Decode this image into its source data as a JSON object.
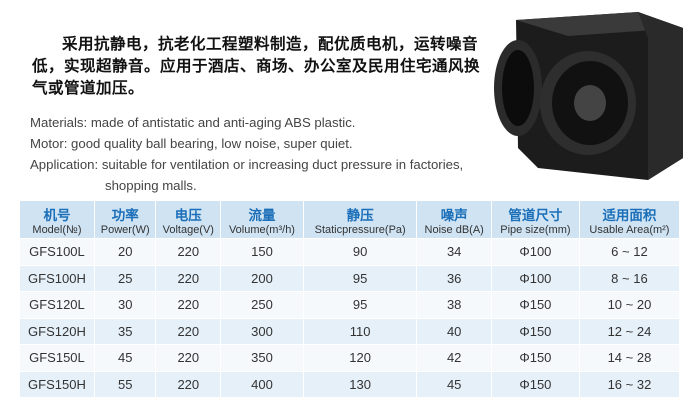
{
  "description_zh": "采用抗静电，抗老化工程塑料制造，配优质电机，运转噪音低，实现超静音。应用于酒店、商场、办公室及民用住宅通风换气或管道加压。",
  "features": [
    "Materials: made of antistatic and anti-aging ABS plastic.",
    "Motor: good quality ball bearing, low noise, super quiet.",
    "Application: suitable for ventilation or increasing duct pressure in factories, shopping malls."
  ],
  "table": {
    "header_zh": [
      "机号",
      "功率",
      "电压",
      "流量",
      "静压",
      "噪声",
      "管道尺寸",
      "适用面积"
    ],
    "header_en": [
      "Model(№)",
      "Power(W)",
      "Voltage(V)",
      "Volume(m³/h)",
      "Staticpressure(Pa)",
      "Noise dB(A)",
      "Pipe size(mm)",
      "Usable Area(m²)"
    ],
    "rows": [
      [
        "GFS100L",
        20,
        220,
        150,
        90,
        34,
        "Φ100",
        "6 ~ 12"
      ],
      [
        "GFS100H",
        25,
        220,
        200,
        95,
        36,
        "Φ100",
        "8 ~ 16"
      ],
      [
        "GFS120L",
        30,
        220,
        250,
        95,
        38,
        "Φ150",
        "10 ~ 20"
      ],
      [
        "GFS120H",
        35,
        220,
        300,
        110,
        40,
        "Φ150",
        "12 ~ 24"
      ],
      [
        "GFS150L",
        45,
        220,
        350,
        120,
        42,
        "Φ150",
        "14 ~ 28"
      ],
      [
        "GFS150H",
        55,
        220,
        400,
        130,
        45,
        "Φ150",
        "16 ~ 32"
      ]
    ]
  }
}
